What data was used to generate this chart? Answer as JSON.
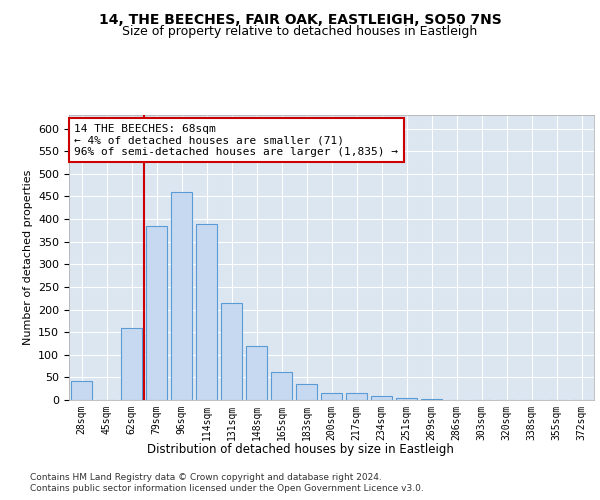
{
  "title1": "14, THE BEECHES, FAIR OAK, EASTLEIGH, SO50 7NS",
  "title2": "Size of property relative to detached houses in Eastleigh",
  "xlabel": "Distribution of detached houses by size in Eastleigh",
  "ylabel": "Number of detached properties",
  "categories": [
    "28sqm",
    "45sqm",
    "62sqm",
    "79sqm",
    "96sqm",
    "114sqm",
    "131sqm",
    "148sqm",
    "165sqm",
    "183sqm",
    "200sqm",
    "217sqm",
    "234sqm",
    "251sqm",
    "269sqm",
    "286sqm",
    "303sqm",
    "320sqm",
    "338sqm",
    "355sqm",
    "372sqm"
  ],
  "values": [
    42,
    0,
    160,
    385,
    460,
    390,
    215,
    120,
    62,
    35,
    15,
    15,
    8,
    5,
    2,
    0,
    0,
    0,
    0,
    0,
    0
  ],
  "bar_color": "#c6d9f0",
  "bar_edge_color": "#5b9bd5",
  "vline_color": "#cc0000",
  "annotation_text": "14 THE BEECHES: 68sqm\n← 4% of detached houses are smaller (71)\n96% of semi-detached houses are larger (1,835) →",
  "annotation_box_color": "#ffffff",
  "annotation_box_edge": "#cc0000",
  "ylim": [
    0,
    630
  ],
  "yticks": [
    0,
    50,
    100,
    150,
    200,
    250,
    300,
    350,
    400,
    450,
    500,
    550,
    600
  ],
  "footer1": "Contains HM Land Registry data © Crown copyright and database right 2024.",
  "footer2": "Contains public sector information licensed under the Open Government Licence v3.0.",
  "plot_background": "#dce6f1",
  "title_fontsize": 10,
  "subtitle_fontsize": 9,
  "bar_width": 0.85
}
